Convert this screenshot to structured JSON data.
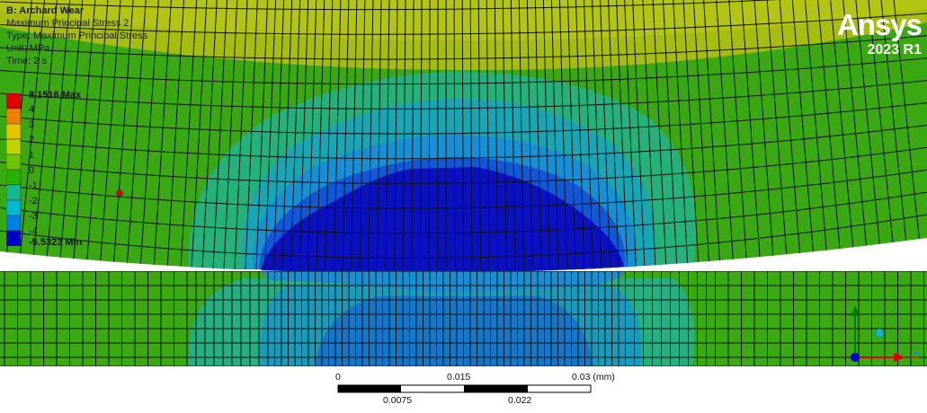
{
  "result": {
    "title": "B: Archard Wear",
    "name": "Maximum Principal Stress 2",
    "type": "Type: Maximum Principal Stress",
    "unit": "Unit: MPa",
    "time": "Time: 2 s"
  },
  "legend": {
    "max_label": "8.1516 Max",
    "min_label": "-5.5323 Min",
    "ticks": [
      "4",
      "3",
      "2",
      "1",
      "0",
      "-1",
      "-2",
      "-3",
      "-4"
    ],
    "colors": [
      "#e00000",
      "#f08000",
      "#e8c400",
      "#c0d400",
      "#6ec400",
      "#28b000",
      "#18b890",
      "#00b8d0",
      "#0080e0",
      "#0000c8"
    ]
  },
  "logo": {
    "brand": "Ansys",
    "version": "2023 R1"
  },
  "scale_bar": {
    "top_labels": [
      "0",
      "0.015",
      "0.03 (mm)"
    ],
    "bottom_labels": [
      "0.0075",
      "0.022"
    ]
  },
  "contour_colors": {
    "upper_background": "#3aa812",
    "top_cap": "#a6bc0e",
    "cap_inner": "#b4c412",
    "band_1": "#24b27a",
    "band_2": "#18a6b4",
    "band_3": "#1690d4",
    "band_4": "#1058d8",
    "core": "#0a10c4",
    "lower_background": "#3aaa10",
    "lower_band_1": "#26b082",
    "lower_band_2": "#189cbc",
    "lower_band_3": "#1278cc"
  },
  "triad": {
    "x_color": "#e00000",
    "y_color": "#008000",
    "z_color": "#0000d0"
  }
}
